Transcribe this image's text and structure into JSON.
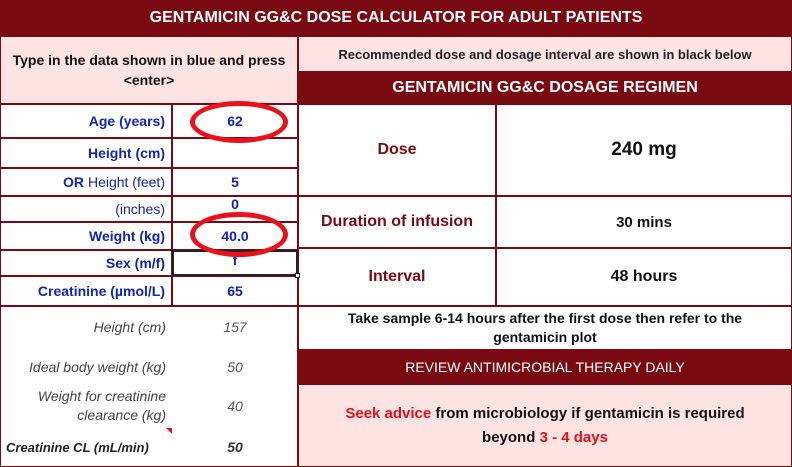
{
  "header": {
    "title": "GENTAMICIN GG&C DOSE CALCULATOR FOR ADULT PATIENTS"
  },
  "left": {
    "instruction": "Type in the data shown in blue and press <enter>",
    "inputs": [
      {
        "label": "Age (years)",
        "value": "62"
      },
      {
        "label": "Height (cm)",
        "value": ""
      },
      {
        "label_prefix": "OR",
        "label": "Height (feet)",
        "value": "5"
      },
      {
        "label": "(inches)",
        "value": "0"
      },
      {
        "label": "Weight (kg)",
        "value": "40.0"
      },
      {
        "label": "Sex (m/f)",
        "value": "f"
      },
      {
        "label": "Creatinine (µmol/L)",
        "value": "65"
      }
    ],
    "calculated": [
      {
        "label": "Height (cm)",
        "value": "157"
      },
      {
        "label": "Ideal body weight (kg)",
        "value": "50"
      },
      {
        "label": "Weight for creatinine clearance (kg)",
        "value": "40"
      },
      {
        "label": "Creatinine CL (mL/min)",
        "value": "50"
      }
    ]
  },
  "right": {
    "note": "Recommended dose and dosage interval are shown in black below",
    "regimen_title": "GENTAMICIN GG&C DOSAGE REGIMEN",
    "rows": [
      {
        "label": "Dose",
        "value": "240 mg"
      },
      {
        "label": "Duration of infusion",
        "value": "30 mins"
      },
      {
        "label": "Interval",
        "value": "48 hours"
      }
    ],
    "sample_note": "Take sample 6-14 hours after the first dose then refer to the gentamicin plot",
    "review_title": "REVIEW ANTIMICROBIAL THERAPY DAILY",
    "advice": {
      "part1": "Seek advice",
      "part2": " from microbiology if gentamicin is required beyond ",
      "part3": "3 - 4 days"
    }
  },
  "colors": {
    "maroon": "#7a0a12",
    "pink": "#fde3e1",
    "blue": "#1024b8",
    "red": "#e3121b"
  }
}
